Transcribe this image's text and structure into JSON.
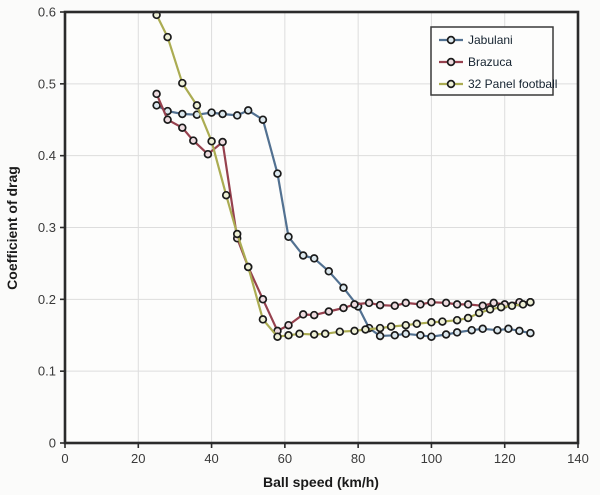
{
  "figure": {
    "background": "#fbfbfa",
    "plot_background": "#fdfdfc",
    "axis_color": "#2b2b2b",
    "grid_color": "#dddddd",
    "tick_label_color": "#3a3a3a",
    "marker_stroke": "#1b1b1b",
    "legend_border": "#3a3a3a",
    "legend_background": "#fdfdfc"
  },
  "chart_data": {
    "type": "line",
    "title": "",
    "xlabel": "Ball speed (km/h)",
    "ylabel": "Coefficient of drag",
    "xlim": [
      0,
      140
    ],
    "ylim": [
      0,
      0.6
    ],
    "xticks": [
      0,
      20,
      40,
      60,
      80,
      100,
      120,
      140
    ],
    "xticklabels": [
      "0",
      "20",
      "40",
      "60",
      "80",
      "100",
      "120",
      "140"
    ],
    "yticks": [
      0,
      0.1,
      0.2,
      0.3,
      0.4,
      0.5,
      0.6
    ],
    "yticklabels": [
      "0",
      "0.1",
      "0.2",
      "0.3",
      "0.4",
      "0.5",
      "0.6"
    ],
    "grid": true,
    "legend_position": "upper right",
    "marker": "circle",
    "series": [
      {
        "name": "Jabulani",
        "color": "#527191",
        "marker_fill": "#dce8ee",
        "points": [
          [
            25,
            0.47
          ],
          [
            28,
            0.462
          ],
          [
            32,
            0.458
          ],
          [
            36,
            0.457
          ],
          [
            40,
            0.46
          ],
          [
            43,
            0.458
          ],
          [
            47,
            0.456
          ],
          [
            50,
            0.463
          ],
          [
            54,
            0.45
          ],
          [
            58,
            0.375
          ],
          [
            61,
            0.287
          ],
          [
            65,
            0.261
          ],
          [
            68,
            0.257
          ],
          [
            72,
            0.239
          ],
          [
            76,
            0.216
          ],
          [
            80,
            0.19
          ],
          [
            83,
            0.16
          ],
          [
            86,
            0.149
          ],
          [
            90,
            0.15
          ],
          [
            93,
            0.152
          ],
          [
            97,
            0.15
          ],
          [
            100,
            0.148
          ],
          [
            104,
            0.151
          ],
          [
            107,
            0.154
          ],
          [
            111,
            0.157
          ],
          [
            114,
            0.159
          ],
          [
            118,
            0.157
          ],
          [
            121,
            0.159
          ],
          [
            124,
            0.156
          ],
          [
            127,
            0.153
          ]
        ]
      },
      {
        "name": "Brazuca",
        "color": "#96414e",
        "marker_fill": "#eedce0",
        "points": [
          [
            25,
            0.486
          ],
          [
            28,
            0.45
          ],
          [
            32,
            0.439
          ],
          [
            35,
            0.421
          ],
          [
            39,
            0.402
          ],
          [
            43,
            0.419
          ],
          [
            47,
            0.285
          ],
          [
            50,
            0.245
          ],
          [
            54,
            0.2
          ],
          [
            58,
            0.156
          ],
          [
            61,
            0.164
          ],
          [
            65,
            0.179
          ],
          [
            68,
            0.178
          ],
          [
            72,
            0.183
          ],
          [
            76,
            0.188
          ],
          [
            79,
            0.193
          ],
          [
            83,
            0.195
          ],
          [
            86,
            0.192
          ],
          [
            90,
            0.191
          ],
          [
            93,
            0.195
          ],
          [
            97,
            0.193
          ],
          [
            100,
            0.196
          ],
          [
            104,
            0.195
          ],
          [
            107,
            0.193
          ],
          [
            110,
            0.193
          ],
          [
            114,
            0.191
          ],
          [
            117,
            0.195
          ],
          [
            120,
            0.193
          ],
          [
            124,
            0.196
          ],
          [
            127,
            0.196
          ]
        ]
      },
      {
        "name": "32 Panel football",
        "color": "#abac52",
        "marker_fill": "#eef0d6",
        "points": [
          [
            25,
            0.596
          ],
          [
            28,
            0.565
          ],
          [
            32,
            0.501
          ],
          [
            36,
            0.47
          ],
          [
            40,
            0.42
          ],
          [
            44,
            0.345
          ],
          [
            47,
            0.291
          ],
          [
            50,
            0.245
          ],
          [
            54,
            0.172
          ],
          [
            58,
            0.148
          ],
          [
            61,
            0.15
          ],
          [
            64,
            0.152
          ],
          [
            68,
            0.151
          ],
          [
            71,
            0.152
          ],
          [
            75,
            0.155
          ],
          [
            79,
            0.156
          ],
          [
            82,
            0.158
          ],
          [
            86,
            0.16
          ],
          [
            89,
            0.162
          ],
          [
            93,
            0.164
          ],
          [
            96,
            0.166
          ],
          [
            100,
            0.168
          ],
          [
            103,
            0.169
          ],
          [
            107,
            0.171
          ],
          [
            110,
            0.174
          ],
          [
            113,
            0.181
          ],
          [
            116,
            0.186
          ],
          [
            119,
            0.189
          ],
          [
            122,
            0.191
          ],
          [
            125,
            0.193
          ],
          [
            127,
            0.196
          ]
        ]
      }
    ]
  }
}
